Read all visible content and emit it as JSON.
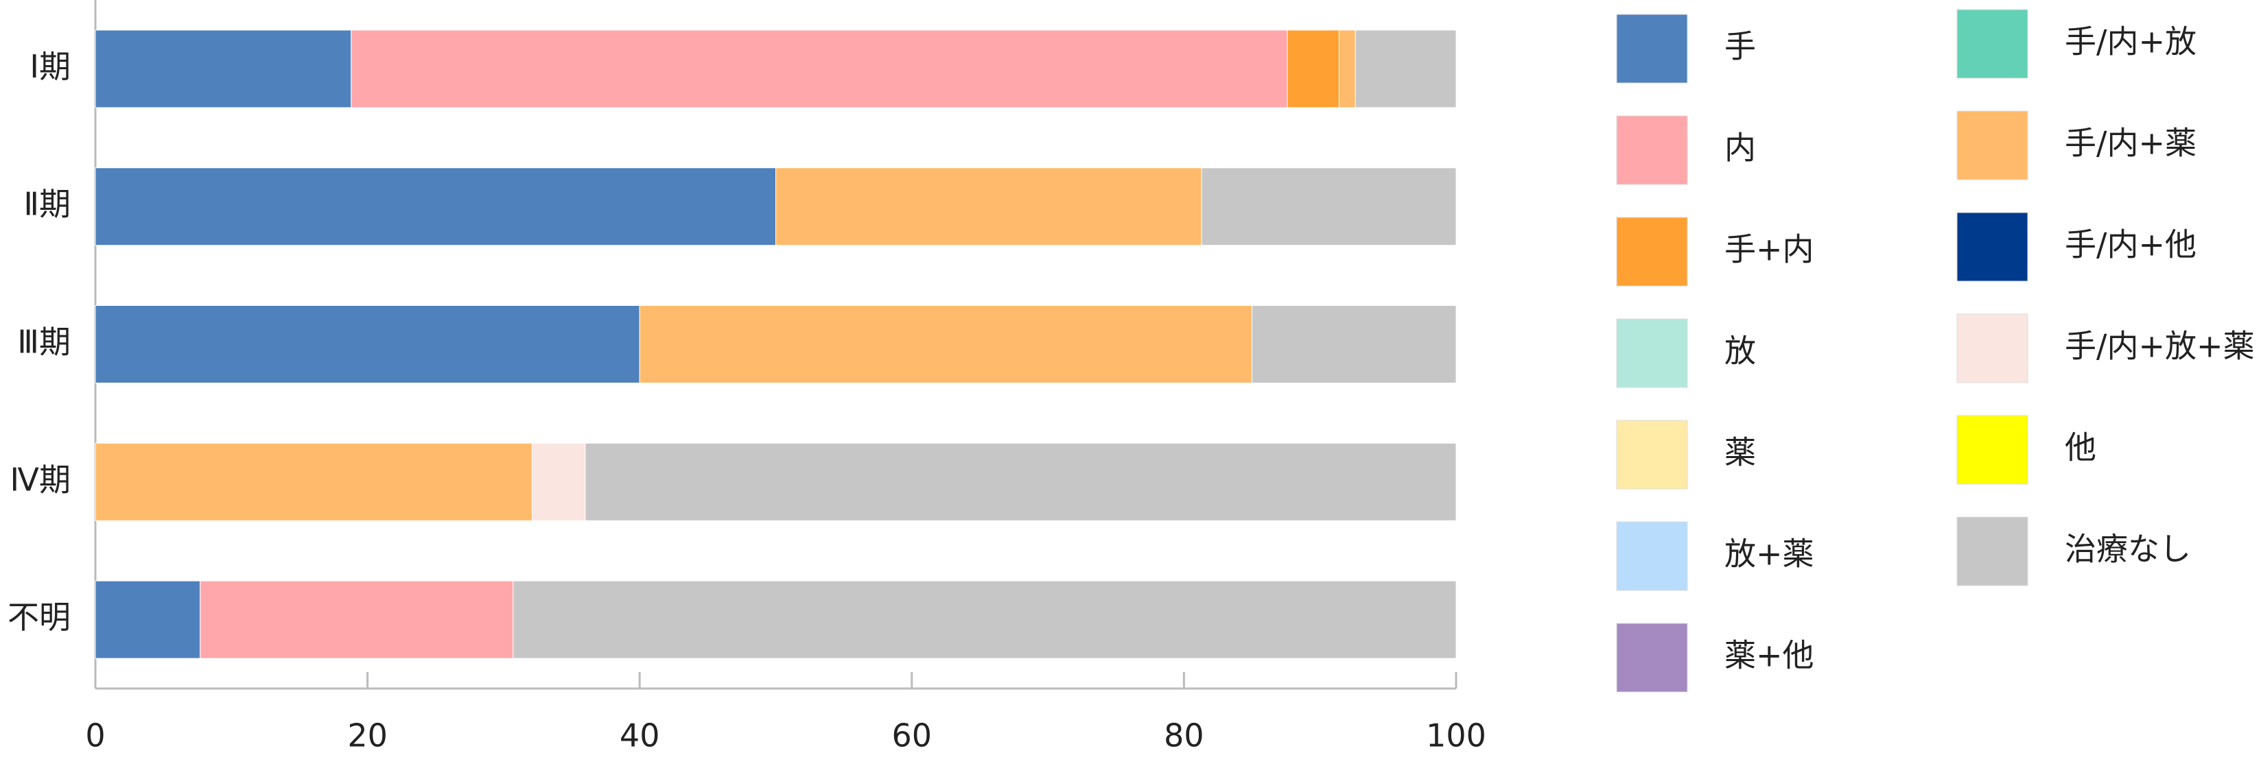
{
  "chart_data": {
    "type": "stacked_barh",
    "categories": [
      "Ⅰ期",
      "Ⅱ期",
      "Ⅲ期",
      "Ⅳ期",
      "不明"
    ],
    "series": [
      {
        "name": "手",
        "color": "#4f81bd",
        "values": [
          18.8,
          50.0,
          40.0,
          0,
          7.7
        ]
      },
      {
        "name": "内",
        "color": "#ffa7ab",
        "values": [
          68.8,
          0,
          0,
          0,
          23.0
        ]
      },
      {
        "name": "手+内",
        "color": "#ffa033",
        "values": [
          3.8,
          0,
          0,
          0,
          0
        ]
      },
      {
        "name": "放",
        "color": "#b2e8db",
        "values": [
          0,
          0,
          0,
          0,
          0
        ]
      },
      {
        "name": "薬",
        "color": "#ffeaa6",
        "values": [
          0,
          0,
          0,
          0,
          0
        ]
      },
      {
        "name": "放+薬",
        "color": "#b8dcfc",
        "values": [
          0,
          0,
          0,
          0,
          0
        ]
      },
      {
        "name": "薬+他",
        "color": "#a589c1",
        "values": [
          0,
          0,
          0,
          0,
          0
        ]
      },
      {
        "name": "手/内+放",
        "color": "#63d1b6",
        "values": [
          0,
          0,
          0,
          0,
          0
        ]
      },
      {
        "name": "手/内+薬",
        "color": "#ffbb6b",
        "values": [
          1.2,
          31.3,
          45.0,
          32.1,
          0
        ]
      },
      {
        "name": "手/内+他",
        "color": "#003a8c",
        "values": [
          0,
          0,
          0,
          0,
          0
        ]
      },
      {
        "name": "手/内+放+薬",
        "color": "#fbe5e0",
        "values": [
          0,
          0,
          0,
          3.9,
          0
        ]
      },
      {
        "name": "他",
        "color": "#ffff00",
        "values": [
          0,
          0,
          0,
          0,
          0
        ]
      },
      {
        "name": "治療なし",
        "color": "#c6c6c6",
        "values": [
          7.4,
          18.7,
          15.0,
          64.0,
          69.3
        ]
      }
    ],
    "xlim": [
      0,
      100
    ],
    "xticks": [
      0,
      20,
      40,
      60,
      80,
      100
    ],
    "legend": "right"
  }
}
